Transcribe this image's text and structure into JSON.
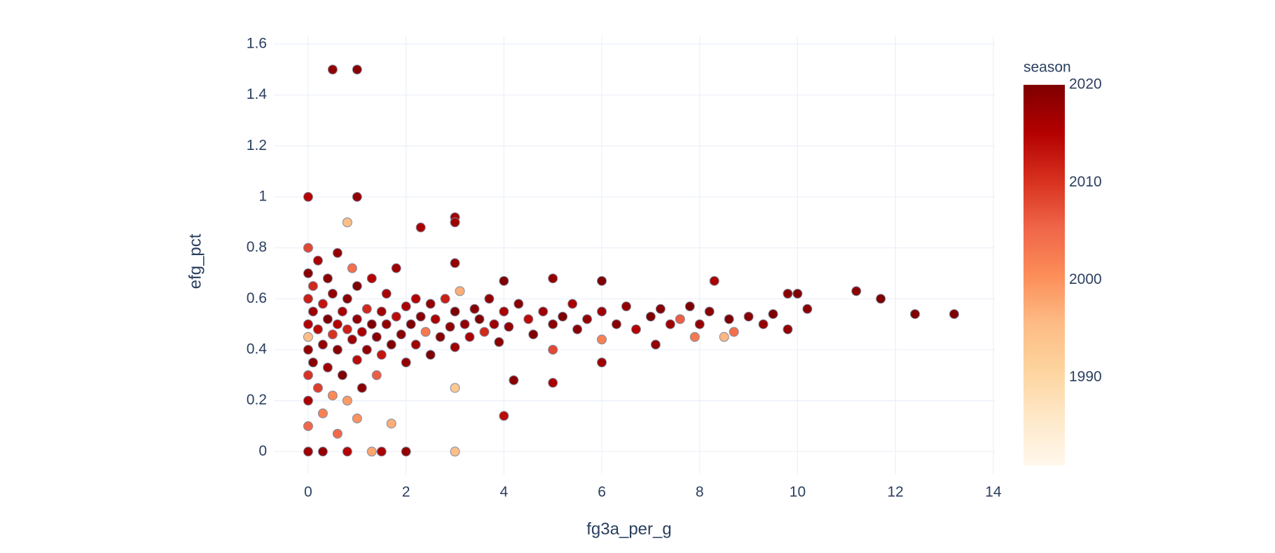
{
  "chart_data": {
    "type": "scatter",
    "x_label": "fg3a_per_g",
    "y_label": "efg_pct",
    "xlim": [
      -0.7,
      14.03
    ],
    "ylim": [
      -0.09,
      1.63
    ],
    "xticks": [
      0,
      2,
      4,
      6,
      8,
      10,
      12,
      14
    ],
    "yticks": [
      0,
      0.2,
      0.4,
      0.6,
      0.8,
      1,
      1.2,
      1.4,
      1.6
    ],
    "grid": true,
    "colorbar": {
      "title": "season",
      "lim": [
        1981,
        2020
      ],
      "ticks": [
        1990,
        2000,
        2010,
        2020
      ],
      "colorscale": [
        "#fff7ec",
        "#fee8c8",
        "#fdd49e",
        "#fdbb84",
        "#fc8d59",
        "#ef6548",
        "#d7301f",
        "#b30000",
        "#7f0000"
      ]
    },
    "x": [
      0.5,
      1,
      0,
      1,
      2.3,
      3,
      3,
      3,
      0.8,
      11.2,
      11.7,
      12.4,
      13.2,
      10.2,
      10,
      9.8,
      9.8,
      8.3,
      4,
      3,
      2,
      1.5,
      1.3,
      0,
      0.3,
      0.8,
      5,
      4.2,
      1.7,
      1,
      0.6,
      6,
      7.1,
      8.5,
      8.7,
      7.9,
      0,
      0,
      0,
      0,
      0,
      0,
      0,
      0,
      0,
      0.1,
      0.1,
      0.1,
      0.2,
      0.2,
      0.2,
      0.3,
      0.3,
      0.3,
      0.4,
      0.4,
      0.4,
      0.5,
      0.5,
      0.5,
      0.6,
      0.6,
      0.6,
      0.7,
      0.7,
      0.8,
      0.8,
      0.8,
      0.9,
      0.9,
      1,
      1,
      1,
      1.1,
      1.1,
      1.2,
      1.2,
      1.3,
      1.3,
      1.4,
      1.4,
      1.5,
      1.5,
      1.6,
      1.6,
      1.7,
      1.8,
      1.8,
      1.9,
      2,
      2,
      2.1,
      2.2,
      2.2,
      2.3,
      2.4,
      2.5,
      2.5,
      2.6,
      2.7,
      2.8,
      2.9,
      3,
      3,
      3,
      3.1,
      3.2,
      3.3,
      3.4,
      3.5,
      3.6,
      3.7,
      3.8,
      3.9,
      4,
      4,
      4.1,
      4.3,
      4.5,
      4.6,
      4.8,
      5,
      5,
      5,
      5.2,
      5.4,
      5.5,
      5.7,
      6,
      6,
      6,
      6.3,
      6.5,
      6.7,
      7,
      7.2,
      7.4,
      7.6,
      7.8,
      8,
      8.2,
      8.6,
      9,
      9.3,
      9.5
    ],
    "y": [
      1.5,
      1.5,
      1,
      1,
      0.88,
      0.92,
      0.9,
      0.74,
      0.9,
      0.63,
      0.6,
      0.54,
      0.54,
      0.56,
      0.62,
      0.62,
      0.48,
      0.67,
      0.14,
      0,
      0,
      0,
      0,
      0,
      0,
      0,
      0.27,
      0.28,
      0.11,
      0.13,
      0.07,
      0.35,
      0.42,
      0.45,
      0.47,
      0.45,
      0.5,
      0.4,
      0.6,
      0.3,
      0.7,
      0.8,
      0.2,
      0.1,
      0.45,
      0.55,
      0.35,
      0.65,
      0.48,
      0.25,
      0.75,
      0.42,
      0.58,
      0.15,
      0.52,
      0.33,
      0.68,
      0.46,
      0.62,
      0.22,
      0.5,
      0.4,
      0.78,
      0.55,
      0.3,
      0.48,
      0.6,
      0.2,
      0.44,
      0.72,
      0.52,
      0.36,
      0.65,
      0.47,
      0.25,
      0.56,
      0.4,
      0.5,
      0.68,
      0.45,
      0.3,
      0.55,
      0.38,
      0.5,
      0.62,
      0.42,
      0.53,
      0.72,
      0.46,
      0.57,
      0.35,
      0.5,
      0.6,
      0.42,
      0.53,
      0.47,
      0.58,
      0.38,
      0.52,
      0.45,
      0.6,
      0.49,
      0.55,
      0.41,
      0.25,
      0.63,
      0.5,
      0.45,
      0.56,
      0.52,
      0.47,
      0.6,
      0.5,
      0.43,
      0.55,
      0.67,
      0.49,
      0.58,
      0.52,
      0.46,
      0.55,
      0.68,
      0.5,
      0.4,
      0.53,
      0.58,
      0.48,
      0.52,
      0.67,
      0.55,
      0.44,
      0.5,
      0.57,
      0.48,
      0.53,
      0.56,
      0.5,
      0.52,
      0.57,
      0.5,
      0.55,
      0.52,
      0.53,
      0.5,
      0.54
    ],
    "season": [
      2018,
      2019,
      2015,
      2018,
      2016,
      2017,
      2017,
      2018,
      1995,
      2019,
      2020,
      2020,
      2020,
      2019,
      2020,
      2019,
      2018,
      2016,
      2014,
      1995,
      2018,
      2016,
      1998,
      2017,
      2018,
      2015,
      2016,
      2019,
      1997,
      2000,
      2005,
      2017,
      2018,
      1996,
      2004,
      2003,
      2015,
      2018,
      2012,
      2010,
      2019,
      2008,
      2016,
      2005,
      1995,
      2017,
      2019,
      2011,
      2014,
      2009,
      2016,
      2018,
      2013,
      2002,
      2020,
      2017,
      2019,
      2010,
      2018,
      2001,
      2015,
      2019,
      2018,
      2016,
      2020,
      2012,
      2019,
      1999,
      2017,
      2004,
      2018,
      2014,
      2020,
      2016,
      2019,
      2011,
      2018,
      2020,
      2015,
      2019,
      2006,
      2017,
      2013,
      2018,
      2016,
      2020,
      2014,
      2017,
      2019,
      2016,
      2018,
      2020,
      2015,
      2017,
      2019,
      2003,
      2018,
      2020,
      2016,
      2019,
      2012,
      2018,
      2020,
      2017,
      1993,
      1997,
      2018,
      2016,
      2019,
      2020,
      2011,
      2018,
      2017,
      2019,
      2016,
      2020,
      2018,
      2019,
      2014,
      2020,
      2017,
      2018,
      2019,
      2008,
      2020,
      2016,
      2019,
      2018,
      2020,
      2017,
      2002,
      2019,
      2018,
      2015,
      2020,
      2019,
      2017,
      2006,
      2020,
      2018,
      2019,
      2020,
      2019,
      2018,
      2020
    ]
  }
}
